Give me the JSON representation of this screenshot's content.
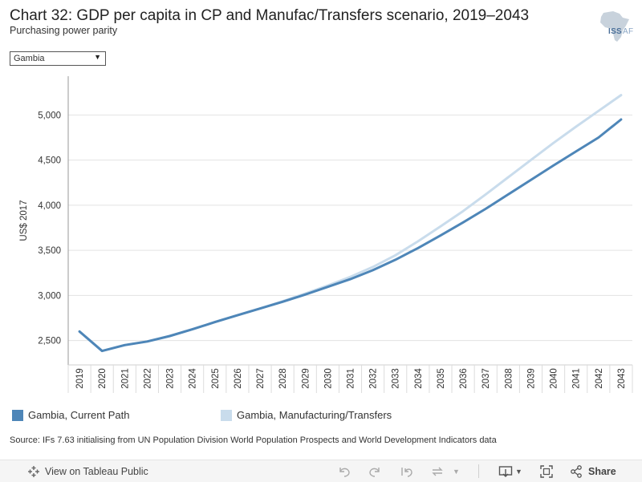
{
  "header": {
    "title": "Chart 32: GDP per capita in CP and Manufac/Transfers scenario, 2019–2043",
    "subtitle": "Purchasing power parity"
  },
  "logo": {
    "text_main": "ISS",
    "text_sub": "AF"
  },
  "filter": {
    "selected": "Gambia"
  },
  "chart_data": {
    "type": "line",
    "title": "Chart 32: GDP per capita in CP and Manufac/Transfers scenario, 2019–2043",
    "subtitle": "Purchasing power parity",
    "xlabel": "",
    "ylabel": "US$ 2017",
    "ylim": [
      2230,
      5430
    ],
    "yticks": [
      2500,
      3000,
      3500,
      4000,
      4500,
      5000
    ],
    "ytick_labels": [
      "2,500",
      "3,000",
      "3,500",
      "4,000",
      "4,500",
      "5,000"
    ],
    "x": [
      "2019",
      "2020",
      "2021",
      "2022",
      "2023",
      "2024",
      "2025",
      "2026",
      "2027",
      "2028",
      "2029",
      "2030",
      "2031",
      "2032",
      "2033",
      "2034",
      "2035",
      "2036",
      "2037",
      "2038",
      "2039",
      "2040",
      "2041",
      "2042",
      "2043"
    ],
    "grid": true,
    "series": [
      {
        "name": "Gambia, Manufacturing/Transfers",
        "color": "#c9dcec",
        "values": [
          2600,
          2385,
          2450,
          2490,
          2550,
          2625,
          2705,
          2780,
          2855,
          2935,
          3020,
          3110,
          3205,
          3315,
          3445,
          3600,
          3765,
          3935,
          4120,
          4310,
          4500,
          4690,
          4870,
          5045,
          5220
        ]
      },
      {
        "name": "Gambia, Current Path",
        "color": "#4e86b8",
        "values": [
          2600,
          2385,
          2450,
          2490,
          2550,
          2625,
          2705,
          2780,
          2855,
          2930,
          3010,
          3095,
          3180,
          3280,
          3395,
          3525,
          3665,
          3810,
          3960,
          4120,
          4280,
          4440,
          4595,
          4750,
          4950
        ]
      }
    ]
  },
  "source": "Source: IFs 7.63 initialising from UN Population Division World Population Prospects and World Development Indicators data",
  "toolbar": {
    "view_label": "View on Tableau Public",
    "share_label": "Share",
    "icons": [
      "tableau-icon",
      "undo-icon",
      "redo-icon",
      "revert-icon",
      "refresh-icon",
      "download-icon",
      "fullscreen-icon",
      "share-icon"
    ]
  }
}
